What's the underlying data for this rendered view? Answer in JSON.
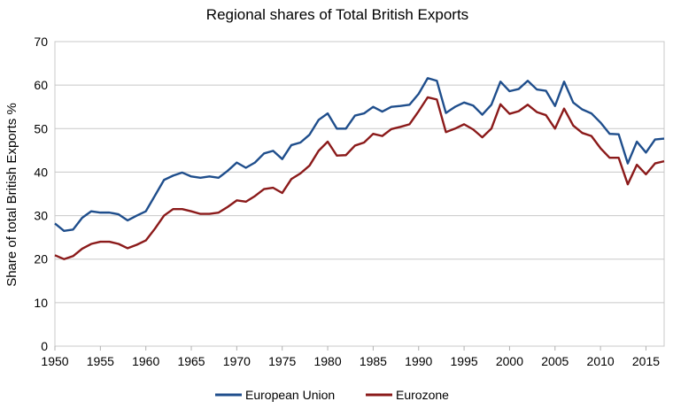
{
  "chart_data": {
    "type": "line",
    "title": "Regional shares of Total British Exports",
    "xlabel": "",
    "ylabel": "Share of total British Exports %",
    "ylim": [
      0,
      70
    ],
    "xlim": [
      1950,
      2017
    ],
    "yticks": [
      0,
      10,
      20,
      30,
      40,
      50,
      60,
      70
    ],
    "xticks": [
      1950,
      1955,
      1960,
      1965,
      1970,
      1975,
      1980,
      1985,
      1990,
      1995,
      2000,
      2005,
      2010,
      2015
    ],
    "grid": "horizontal",
    "legend_position": "bottom",
    "x": [
      1950,
      1951,
      1952,
      1953,
      1954,
      1955,
      1956,
      1957,
      1958,
      1959,
      1960,
      1961,
      1962,
      1963,
      1964,
      1965,
      1966,
      1967,
      1968,
      1969,
      1970,
      1971,
      1972,
      1973,
      1974,
      1975,
      1976,
      1977,
      1978,
      1979,
      1980,
      1981,
      1982,
      1983,
      1984,
      1985,
      1986,
      1987,
      1988,
      1989,
      1990,
      1991,
      1992,
      1993,
      1994,
      1995,
      1996,
      1997,
      1998,
      1999,
      2000,
      2001,
      2002,
      2003,
      2004,
      2005,
      2006,
      2007,
      2008,
      2009,
      2010,
      2011,
      2012,
      2013,
      2014,
      2015,
      2016,
      2017
    ],
    "series": [
      {
        "name": "European Union",
        "color": "#1f4e8c",
        "values": [
          28.2,
          26.5,
          26.8,
          29.5,
          31.0,
          30.7,
          30.7,
          30.3,
          28.9,
          30.0,
          31.0,
          34.6,
          38.2,
          39.2,
          39.9,
          39.0,
          38.7,
          39.0,
          38.7,
          40.3,
          42.2,
          41.0,
          42.2,
          44.3,
          44.9,
          43.0,
          46.2,
          46.8,
          48.6,
          52.0,
          53.5,
          50.0,
          50.0,
          53.0,
          53.5,
          55.0,
          53.9,
          55.0,
          55.2,
          55.5,
          58.0,
          61.6,
          61.0,
          53.6,
          55.0,
          56.0,
          55.3,
          53.2,
          55.5,
          60.8,
          58.6,
          59.1,
          61.0,
          59.0,
          58.7,
          55.2,
          60.8,
          56.0,
          54.4,
          53.5,
          51.4,
          48.8,
          48.7,
          42.0,
          47.0,
          44.5,
          47.5,
          47.7
        ]
      },
      {
        "name": "Eurozone",
        "color": "#8b1a1a",
        "values": [
          20.9,
          20.0,
          20.7,
          22.4,
          23.5,
          24.0,
          24.0,
          23.5,
          22.5,
          23.3,
          24.3,
          27.0,
          30.0,
          31.5,
          31.5,
          31.0,
          30.4,
          30.4,
          30.7,
          32.0,
          33.5,
          33.2,
          34.5,
          36.1,
          36.4,
          35.2,
          38.4,
          39.7,
          41.5,
          44.9,
          47.0,
          43.8,
          43.9,
          46.1,
          46.8,
          48.8,
          48.3,
          49.9,
          50.4,
          51.0,
          54.0,
          57.2,
          56.7,
          49.2,
          50.0,
          51.0,
          49.8,
          48.0,
          50.0,
          55.6,
          53.4,
          54.0,
          55.5,
          53.8,
          53.1,
          50.0,
          54.6,
          50.7,
          49.0,
          48.3,
          45.5,
          43.3,
          43.3,
          37.2,
          41.7,
          39.5,
          42.0,
          42.5
        ]
      }
    ]
  }
}
